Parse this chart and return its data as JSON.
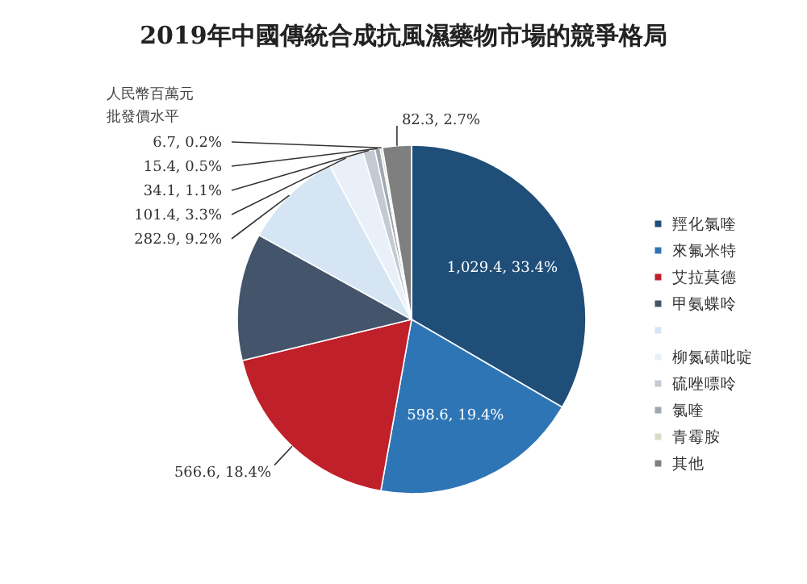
{
  "chart_data": {
    "type": "pie",
    "title": "2019年中國傳統合成抗風濕藥物市場的競爭格局",
    "annotations": [
      "人民幣百萬元",
      "批發價水平"
    ],
    "categories": [
      "羥化氯喹",
      "來氟米特",
      "艾拉莫德",
      "甲氨蝶呤",
      null,
      "柳氮磺吡啶",
      "硫唑嘌呤",
      "氯喹",
      "青霉胺",
      "其他"
    ],
    "values": [
      1029.4,
      598.6,
      566.6,
      364.6,
      282.9,
      101.4,
      34.1,
      15.4,
      6.7,
      82.3
    ],
    "value_labels": [
      "1,029.4, 33.4%",
      "598.6, 19.4%",
      "566.6, 18.4%",
      null,
      "282.9, 9.2%",
      "101.4, 3.3%",
      "34.1, 1.1%",
      "15.4, 0.5%",
      "6.7, 0.2%",
      "82.3, 2.7%"
    ],
    "colors": [
      "#1f4e79",
      "#2e75b6",
      "#c0202a",
      "#44546a",
      "#d5e5f3",
      "#eaf0f7",
      "#c3cad2",
      "#9fa7b0",
      "#d9dcc6",
      "#7f7f7f"
    ],
    "legend": "right"
  }
}
